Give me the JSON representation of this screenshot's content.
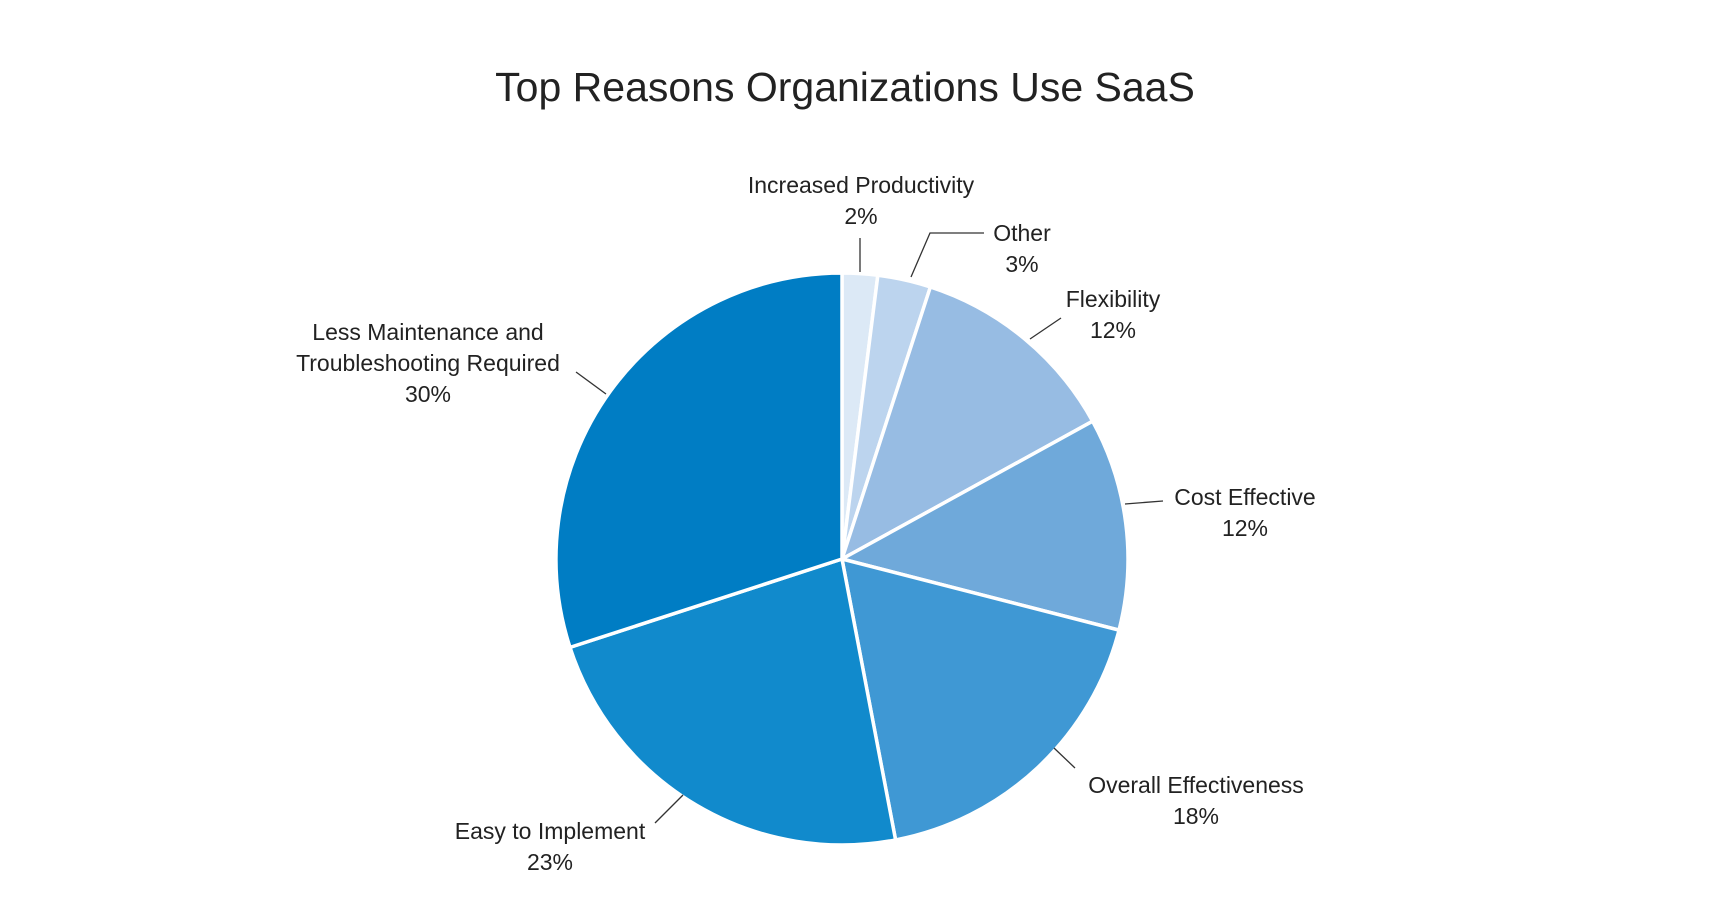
{
  "chart_data": {
    "type": "pie",
    "title": "Top Reasons Organizations Use SaaS",
    "unit": "%",
    "start_angle_deg": 0,
    "direction": "clockwise",
    "slices": [
      {
        "label_lines": [
          "Increased Productivity"
        ],
        "value": 2,
        "value_label": "2%",
        "color": "#dce9f6"
      },
      {
        "label_lines": [
          "Other"
        ],
        "value": 3,
        "value_label": "3%",
        "color": "#bcd4ee"
      },
      {
        "label_lines": [
          "Flexibility"
        ],
        "value": 12,
        "value_label": "12%",
        "color": "#97bce3"
      },
      {
        "label_lines": [
          "Cost Effective"
        ],
        "value": 12,
        "value_label": "12%",
        "color": "#6fa9da"
      },
      {
        "label_lines": [
          "Overall Effectiveness"
        ],
        "value": 18,
        "value_label": "18%",
        "color": "#3f98d4"
      },
      {
        "label_lines": [
          "Easy to Implement"
        ],
        "value": 23,
        "value_label": "23%",
        "color": "#118acc"
      },
      {
        "label_lines": [
          "Less Maintenance and",
          "Troubleshooting Required"
        ],
        "value": 30,
        "value_label": "30%",
        "color": "#007dc4"
      }
    ]
  }
}
